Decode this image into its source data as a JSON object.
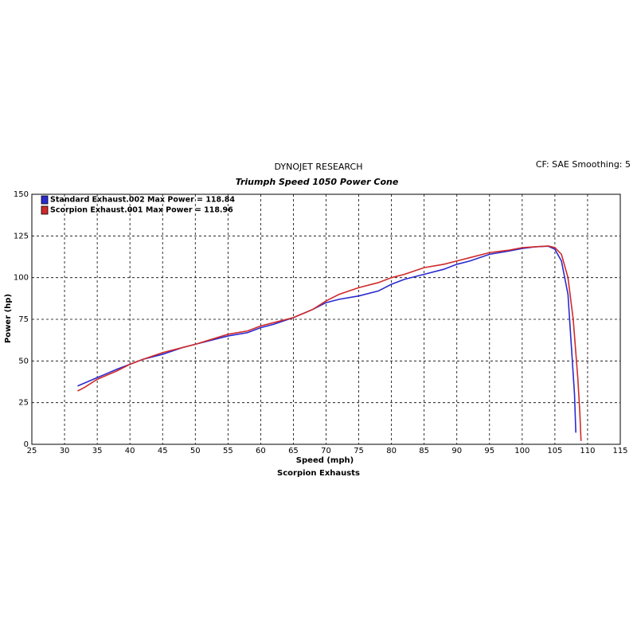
{
  "chart_data": {
    "type": "line",
    "title": "DYNOJET RESEARCH",
    "subtitle": "Triumph Speed 1050 Power Cone",
    "annotation": "CF: SAE  Smoothing: 5",
    "x_label": "Speed (mph)",
    "y_label": "Power (hp)",
    "footer": "Scorpion Exhausts",
    "xlim": [
      25,
      115
    ],
    "ylim": [
      0,
      150
    ],
    "xticks": [
      25,
      30,
      35,
      40,
      45,
      50,
      55,
      60,
      65,
      70,
      75,
      80,
      85,
      90,
      95,
      100,
      105,
      110,
      115
    ],
    "yticks": [
      0,
      25,
      50,
      75,
      100,
      125,
      150
    ],
    "grid": true,
    "series": [
      {
        "name": "Standard Exhaust.002 Max Power = 118.84",
        "color": "#2a2ad0",
        "x": [
          32,
          35,
          38,
          40,
          42,
          45,
          48,
          50,
          55,
          58,
          60,
          62,
          65,
          68,
          70,
          72,
          75,
          78,
          80,
          82,
          85,
          88,
          90,
          92,
          95,
          98,
          100,
          102,
          104,
          105,
          106,
          107,
          107.5,
          108,
          108.2
        ],
        "values": [
          35,
          40,
          45,
          48,
          51,
          54,
          58,
          60,
          65,
          67,
          70,
          72,
          76,
          81,
          85,
          87,
          89,
          92,
          96,
          99,
          102,
          105,
          108,
          110,
          114,
          116,
          117.5,
          118.5,
          118.84,
          117,
          110,
          90,
          60,
          30,
          7
        ]
      },
      {
        "name": "Scorpion Exhaust.001 Max Power = 118.96",
        "color": "#d02a2a",
        "x": [
          32,
          33,
          35,
          38,
          40,
          42,
          45,
          48,
          50,
          55,
          58,
          60,
          62,
          65,
          68,
          70,
          72,
          75,
          78,
          80,
          82,
          85,
          88,
          90,
          92,
          95,
          98,
          100,
          102,
          104,
          105,
          106,
          107,
          107.8,
          108.5,
          108.8,
          109
        ],
        "values": [
          32,
          34,
          39,
          44,
          48,
          51,
          55,
          58,
          60,
          66,
          68,
          71,
          73,
          76,
          81,
          86,
          90,
          94,
          97,
          100,
          102,
          106,
          108,
          110,
          112,
          115,
          116.5,
          118,
          118.5,
          118.96,
          118,
          114,
          100,
          75,
          40,
          20,
          2
        ]
      }
    ]
  }
}
